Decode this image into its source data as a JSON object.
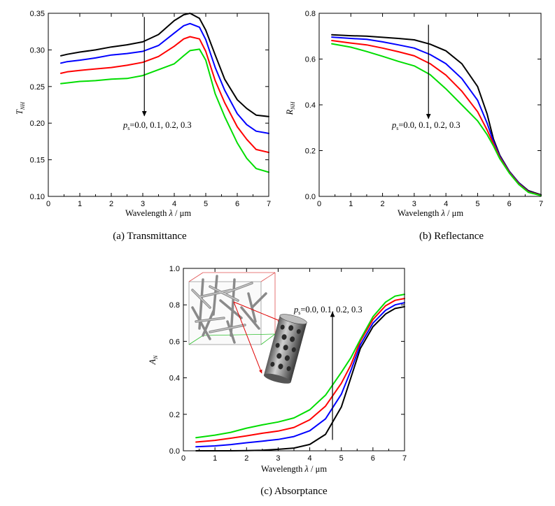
{
  "chart_data": [
    {
      "type": "line",
      "id": "a",
      "caption": "(a) Transmittance",
      "xlabel": "Wavelength λ / μm",
      "ylabel": "T_NH",
      "xlim": [
        0,
        7
      ],
      "ylim": [
        0.1,
        0.35
      ],
      "xticks": [
        "0",
        "1",
        "2",
        "3",
        "4",
        "5",
        "6",
        "7"
      ],
      "yticks": [
        "0.10",
        "0.15",
        "0.20",
        "0.25",
        "0.30",
        "0.35"
      ],
      "annotation": "p_s=0.0, 0.1, 0.2, 0.3",
      "arrow": {
        "x": 3.05,
        "from": 0.345,
        "to": 0.21
      },
      "series": [
        {
          "name": "p_s=0.0",
          "color": "#000000",
          "x": [
            0.4,
            0.6,
            1.0,
            1.5,
            2.0,
            2.5,
            3.0,
            3.5,
            4.0,
            4.3,
            4.5,
            4.8,
            5.0,
            5.3,
            5.6,
            6.0,
            6.3,
            6.6,
            7.0
          ],
          "y": [
            0.292,
            0.294,
            0.297,
            0.3,
            0.304,
            0.307,
            0.311,
            0.321,
            0.34,
            0.348,
            0.35,
            0.343,
            0.327,
            0.293,
            0.26,
            0.232,
            0.22,
            0.211,
            0.209
          ]
        },
        {
          "name": "p_s=0.1",
          "color": "#0000ff",
          "x": [
            0.4,
            0.6,
            1.0,
            1.5,
            2.0,
            2.5,
            3.0,
            3.5,
            4.0,
            4.3,
            4.5,
            4.8,
            5.0,
            5.3,
            5.6,
            6.0,
            6.3,
            6.6,
            7.0
          ],
          "y": [
            0.282,
            0.284,
            0.286,
            0.289,
            0.293,
            0.295,
            0.298,
            0.306,
            0.323,
            0.333,
            0.336,
            0.331,
            0.314,
            0.276,
            0.245,
            0.213,
            0.198,
            0.189,
            0.186
          ]
        },
        {
          "name": "p_s=0.2",
          "color": "#ff0000",
          "x": [
            0.4,
            0.6,
            1.0,
            1.5,
            2.0,
            2.5,
            3.0,
            3.5,
            4.0,
            4.3,
            4.5,
            4.8,
            5.0,
            5.3,
            5.6,
            6.0,
            6.3,
            6.6,
            7.0
          ],
          "y": [
            0.268,
            0.27,
            0.272,
            0.274,
            0.276,
            0.279,
            0.283,
            0.291,
            0.305,
            0.315,
            0.318,
            0.315,
            0.298,
            0.258,
            0.228,
            0.195,
            0.178,
            0.164,
            0.16
          ]
        },
        {
          "name": "p_s=0.3",
          "color": "#00dd00",
          "x": [
            0.4,
            0.6,
            1.0,
            1.5,
            2.0,
            2.5,
            3.0,
            3.5,
            4.0,
            4.3,
            4.5,
            4.8,
            5.0,
            5.3,
            5.6,
            6.0,
            6.3,
            6.6,
            7.0
          ],
          "y": [
            0.254,
            0.255,
            0.257,
            0.258,
            0.26,
            0.261,
            0.265,
            0.273,
            0.281,
            0.292,
            0.299,
            0.301,
            0.286,
            0.24,
            0.209,
            0.173,
            0.152,
            0.138,
            0.133
          ]
        }
      ]
    },
    {
      "type": "line",
      "id": "b",
      "caption": "(b) Reflectance",
      "xlabel": "Wavelength λ / μm",
      "ylabel": "R_NH",
      "xlim": [
        0,
        7
      ],
      "ylim": [
        0.0,
        0.8
      ],
      "xticks": [
        "0",
        "1",
        "2",
        "3",
        "4",
        "5",
        "6",
        "7"
      ],
      "yticks": [
        "0.0",
        "0.2",
        "0.4",
        "0.6",
        "0.8"
      ],
      "annotation": "p_s=0.0, 0.1, 0.2, 0.3",
      "arrow": {
        "x": 3.45,
        "from": 0.75,
        "to": 0.34
      },
      "series": [
        {
          "name": "p_s=0.0",
          "color": "#000000",
          "x": [
            0.4,
            1.0,
            1.5,
            2.0,
            2.5,
            3.0,
            3.5,
            4.0,
            4.5,
            5.0,
            5.3,
            5.5,
            5.7,
            6.0,
            6.3,
            6.6,
            7.0
          ],
          "y": [
            0.706,
            0.702,
            0.7,
            0.695,
            0.69,
            0.684,
            0.665,
            0.636,
            0.58,
            0.48,
            0.36,
            0.25,
            0.18,
            0.11,
            0.06,
            0.025,
            0.007
          ]
        },
        {
          "name": "p_s=0.1",
          "color": "#0000ff",
          "x": [
            0.4,
            1.0,
            1.5,
            2.0,
            2.5,
            3.0,
            3.5,
            4.0,
            4.5,
            5.0,
            5.3,
            5.5,
            5.7,
            6.0,
            6.3,
            6.6,
            7.0
          ],
          "y": [
            0.696,
            0.69,
            0.686,
            0.675,
            0.662,
            0.648,
            0.62,
            0.58,
            0.515,
            0.42,
            0.32,
            0.24,
            0.175,
            0.108,
            0.058,
            0.022,
            0.005
          ]
        },
        {
          "name": "p_s=0.2",
          "color": "#ff0000",
          "x": [
            0.4,
            1.0,
            1.5,
            2.0,
            2.5,
            3.0,
            3.5,
            4.0,
            4.5,
            5.0,
            5.3,
            5.5,
            5.7,
            6.0,
            6.3,
            6.6,
            7.0
          ],
          "y": [
            0.681,
            0.67,
            0.662,
            0.648,
            0.632,
            0.614,
            0.58,
            0.53,
            0.46,
            0.37,
            0.29,
            0.23,
            0.17,
            0.105,
            0.055,
            0.02,
            0.004
          ]
        },
        {
          "name": "p_s=0.3",
          "color": "#00dd00",
          "x": [
            0.4,
            1.0,
            1.5,
            2.0,
            2.5,
            3.0,
            3.5,
            4.0,
            4.5,
            5.0,
            5.3,
            5.5,
            5.7,
            6.0,
            6.3,
            6.6,
            7.0
          ],
          "y": [
            0.667,
            0.652,
            0.633,
            0.612,
            0.59,
            0.57,
            0.532,
            0.47,
            0.4,
            0.33,
            0.27,
            0.22,
            0.165,
            0.102,
            0.052,
            0.018,
            0.003
          ]
        }
      ]
    },
    {
      "type": "line",
      "id": "c",
      "caption": "(c) Absorptance",
      "xlabel": "Wavelength λ / μm",
      "ylabel": "A_N",
      "xlim": [
        0,
        7
      ],
      "ylim": [
        0.0,
        1.0
      ],
      "xticks": [
        "0",
        "1",
        "2",
        "3",
        "4",
        "5",
        "6",
        "7"
      ],
      "yticks": [
        "0.0",
        "0.2",
        "0.4",
        "0.6",
        "0.8",
        "1.0"
      ],
      "annotation": "p_s=0.0, 0.1, 0.2, 0.3",
      "arrow": {
        "x": 4.72,
        "from": 0.06,
        "to": 0.76
      },
      "series": [
        {
          "name": "p_s=0.0",
          "color": "#000000",
          "x": [
            0.4,
            1.0,
            1.5,
            2.0,
            2.5,
            3.0,
            3.5,
            4.0,
            4.5,
            5.0,
            5.3,
            5.6,
            6.0,
            6.4,
            6.7,
            7.0
          ],
          "y": [
            0.0,
            0.0,
            0.0,
            0.001,
            0.003,
            0.008,
            0.015,
            0.035,
            0.09,
            0.24,
            0.4,
            0.56,
            0.68,
            0.75,
            0.78,
            0.79
          ]
        },
        {
          "name": "p_s=0.1",
          "color": "#0000ff",
          "x": [
            0.4,
            1.0,
            1.5,
            2.0,
            2.5,
            3.0,
            3.5,
            4.0,
            4.5,
            5.0,
            5.3,
            5.6,
            6.0,
            6.4,
            6.7,
            7.0
          ],
          "y": [
            0.022,
            0.027,
            0.034,
            0.044,
            0.053,
            0.062,
            0.078,
            0.11,
            0.175,
            0.31,
            0.44,
            0.58,
            0.7,
            0.77,
            0.8,
            0.812
          ]
        },
        {
          "name": "p_s=0.2",
          "color": "#ff0000",
          "x": [
            0.4,
            1.0,
            1.5,
            2.0,
            2.5,
            3.0,
            3.5,
            4.0,
            4.5,
            5.0,
            5.3,
            5.6,
            6.0,
            6.4,
            6.7,
            7.0
          ],
          "y": [
            0.048,
            0.057,
            0.069,
            0.082,
            0.096,
            0.108,
            0.128,
            0.17,
            0.245,
            0.37,
            0.47,
            0.6,
            0.72,
            0.795,
            0.825,
            0.835
          ]
        },
        {
          "name": "p_s=0.3",
          "color": "#00dd00",
          "x": [
            0.4,
            1.0,
            1.5,
            2.0,
            2.5,
            3.0,
            3.5,
            4.0,
            4.5,
            5.0,
            5.3,
            5.6,
            6.0,
            6.4,
            6.7,
            7.0
          ],
          "y": [
            0.072,
            0.086,
            0.101,
            0.124,
            0.142,
            0.158,
            0.18,
            0.225,
            0.305,
            0.43,
            0.51,
            0.61,
            0.735,
            0.815,
            0.848,
            0.858
          ]
        }
      ]
    }
  ],
  "inset": {
    "description_icon": "foam-structure-icon",
    "cell_icon": "holed-cylinder-icon"
  }
}
